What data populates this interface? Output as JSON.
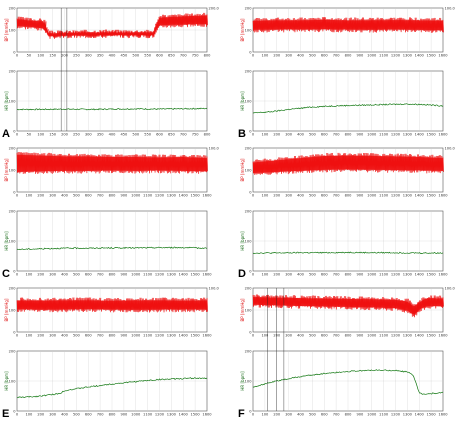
{
  "colors": {
    "bp": "#ee1111",
    "hr": "#117711",
    "grid": "#cccccc",
    "frame": "#555555",
    "event": "#222222"
  },
  "chart_data": [
    {
      "type": "line",
      "panel_label": "A",
      "bp": {
        "ylabel": "BP [mmHg]",
        "ylim": [
          0,
          200
        ],
        "yticks": [
          0,
          100,
          200
        ],
        "rticks": [
          "",
          "",
          "200.0"
        ],
        "xticks": [
          "0",
          "50",
          "100",
          "150",
          "200",
          "250",
          "300",
          "350",
          "400",
          "450",
          "500",
          "550",
          "600",
          "650",
          "700",
          "750",
          "800"
        ],
        "x": [
          0,
          60,
          115,
          130,
          200,
          300,
          400,
          500,
          575,
          590,
          600,
          650,
          700,
          745,
          800
        ],
        "upper": [
          155,
          148,
          145,
          90,
          92,
          95,
          95,
          95,
          95,
          148,
          162,
          165,
          168,
          170,
          172
        ],
        "lower": [
          112,
          108,
          100,
          65,
          68,
          70,
          70,
          70,
          70,
          100,
          115,
          118,
          118,
          120,
          120
        ]
      },
      "hr": {
        "ylabel": "HR [bpm]",
        "ylim": [
          0,
          200
        ],
        "yticks": [
          0,
          100,
          200
        ],
        "xticks": [
          "0",
          "50",
          "100",
          "150",
          "200",
          "250",
          "300",
          "350",
          "400",
          "450",
          "500",
          "550",
          "600",
          "650",
          "700",
          "750",
          "800"
        ],
        "x": [
          0,
          100,
          200,
          300,
          400,
          500,
          600,
          700,
          800
        ],
        "y": [
          72,
          72,
          73,
          72,
          73,
          74,
          73,
          74,
          75
        ]
      },
      "events": [
        186,
        210
      ]
    },
    {
      "type": "line",
      "panel_label": "B",
      "bp": {
        "ylabel": "BP [mmHg]",
        "ylim": [
          0,
          200
        ],
        "yticks": [
          0,
          100,
          200
        ],
        "rticks": [
          "",
          "",
          "100.0"
        ],
        "xticks": [
          "0",
          "100",
          "200",
          "300",
          "400",
          "500",
          "600",
          "700",
          "800",
          "900",
          "1000",
          "1100",
          "1200",
          "1300",
          "1400",
          "1500",
          "1600"
        ],
        "x": [
          0,
          200,
          400,
          600,
          800,
          1000,
          1200,
          1400,
          1600
        ],
        "upper": [
          148,
          150,
          150,
          152,
          150,
          150,
          151,
          150,
          148
        ],
        "lower": [
          95,
          96,
          96,
          97,
          96,
          95,
          96,
          95,
          92
        ]
      },
      "hr": {
        "ylabel": "HR [bpm]",
        "ylim": [
          0,
          200
        ],
        "yticks": [
          0,
          100,
          200
        ],
        "xticks": [
          "0",
          "100",
          "200",
          "300",
          "400",
          "500",
          "600",
          "700",
          "800",
          "900",
          "1000",
          "1100",
          "1200",
          "1300",
          "1400",
          "1500",
          "1600"
        ],
        "x": [
          0,
          150,
          300,
          500,
          700,
          900,
          1100,
          1300,
          1450,
          1550,
          1600
        ],
        "y": [
          60,
          64,
          72,
          80,
          84,
          86,
          88,
          90,
          88,
          85,
          84
        ]
      },
      "events": []
    },
    {
      "type": "line",
      "panel_label": "C",
      "bp": {
        "ylabel": "BP [mmHg]",
        "ylim": [
          0,
          200
        ],
        "yticks": [
          0,
          100,
          200
        ],
        "rticks": [
          "",
          "",
          "100.0"
        ],
        "xticks": [
          "0",
          "100",
          "200",
          "300",
          "400",
          "500",
          "600",
          "700",
          "800",
          "900",
          "1000",
          "1100",
          "1200",
          "1300",
          "1400",
          "1500",
          "1600"
        ],
        "x": [
          0,
          200,
          400,
          600,
          800,
          1000,
          1200,
          1400,
          1600
        ],
        "upper": [
          175,
          172,
          168,
          168,
          165,
          165,
          163,
          165,
          160
        ],
        "lower": [
          85,
          88,
          90,
          90,
          92,
          90,
          92,
          90,
          88
        ]
      },
      "hr": {
        "ylabel": "HR [bpm]",
        "ylim": [
          0,
          200
        ],
        "yticks": [
          0,
          100,
          200
        ],
        "xticks": [
          "0",
          "100",
          "200",
          "300",
          "400",
          "500",
          "600",
          "700",
          "800",
          "900",
          "1000",
          "1100",
          "1200",
          "1300",
          "1400",
          "1500",
          "1600"
        ],
        "x": [
          0,
          200,
          400,
          600,
          800,
          1000,
          1200,
          1400,
          1600
        ],
        "y": [
          72,
          74,
          76,
          76,
          77,
          77,
          78,
          78,
          76
        ]
      },
      "events": []
    },
    {
      "type": "line",
      "panel_label": "D",
      "bp": {
        "ylabel": "BP [mmHg]",
        "ylim": [
          0,
          200
        ],
        "yticks": [
          0,
          100,
          200
        ],
        "rticks": [
          "",
          "",
          "100.0"
        ],
        "xticks": [
          "0",
          "100",
          "200",
          "300",
          "400",
          "500",
          "600",
          "700",
          "800",
          "900",
          "1000",
          "1100",
          "1200",
          "1300",
          "1400",
          "1500",
          "1600"
        ],
        "x": [
          0,
          200,
          400,
          600,
          800,
          1000,
          1200,
          1400,
          1600
        ],
        "upper": [
          140,
          150,
          160,
          170,
          172,
          170,
          168,
          165,
          160
        ],
        "lower": [
          80,
          85,
          90,
          95,
          96,
          95,
          94,
          92,
          90
        ]
      },
      "hr": {
        "ylabel": "HR [bpm]",
        "ylim": [
          0,
          200
        ],
        "yticks": [
          0,
          100,
          200
        ],
        "xticks": [
          "0",
          "100",
          "200",
          "300",
          "400",
          "500",
          "600",
          "700",
          "800",
          "900",
          "1000",
          "1100",
          "1200",
          "1300",
          "1400",
          "1500",
          "1600"
        ],
        "x": [
          0,
          200,
          400,
          600,
          800,
          1000,
          1200,
          1400,
          1600
        ],
        "y": [
          60,
          60,
          61,
          61,
          62,
          61,
          61,
          60,
          60
        ]
      },
      "events": []
    },
    {
      "type": "line",
      "panel_label": "E",
      "bp": {
        "ylabel": "BP [mmHg]",
        "ylim": [
          0,
          200
        ],
        "yticks": [
          0,
          100,
          200
        ],
        "rticks": [
          "",
          "",
          "100.0"
        ],
        "xticks": [
          "0",
          "100",
          "200",
          "300",
          "400",
          "500",
          "600",
          "700",
          "800",
          "900",
          "1000",
          "1100",
          "1200",
          "1300",
          "1400",
          "1500",
          "1600"
        ],
        "x": [
          0,
          200,
          400,
          600,
          800,
          1000,
          1200,
          1400,
          1600
        ],
        "upper": [
          150,
          148,
          150,
          150,
          148,
          150,
          150,
          148,
          150
        ],
        "lower": [
          98,
          95,
          96,
          98,
          96,
          95,
          96,
          97,
          96
        ]
      },
      "hr": {
        "ylabel": "HR [bpm]",
        "ylim": [
          0,
          200
        ],
        "yticks": [
          0,
          100,
          200
        ],
        "xticks": [
          "0",
          "100",
          "200",
          "300",
          "400",
          "500",
          "600",
          "700",
          "800",
          "900",
          "1000",
          "1100",
          "1200",
          "1300",
          "1400",
          "1500",
          "1600"
        ],
        "x": [
          0,
          150,
          300,
          360,
          400,
          600,
          800,
          1000,
          1200,
          1400,
          1500,
          1600
        ],
        "y": [
          45,
          48,
          55,
          58,
          68,
          80,
          90,
          98,
          105,
          108,
          110,
          108
        ]
      },
      "events": []
    },
    {
      "type": "line",
      "panel_label": "F",
      "bp": {
        "ylabel": "BP [mmHg]",
        "ylim": [
          0,
          200
        ],
        "yticks": [
          0,
          100,
          200
        ],
        "rticks": [
          "",
          "",
          "100.0"
        ],
        "xticks": [
          "0",
          "100",
          "200",
          "300",
          "400",
          "500",
          "600",
          "700",
          "800",
          "900",
          "1000",
          "1100",
          "1200",
          "1300",
          "1400",
          "1500",
          "1600"
        ],
        "x": [
          0,
          200,
          400,
          600,
          800,
          1000,
          1200,
          1300,
          1350,
          1400,
          1450,
          1500,
          1600
        ],
        "upper": [
          165,
          162,
          160,
          158,
          156,
          155,
          152,
          145,
          120,
          140,
          158,
          160,
          158
        ],
        "lower": [
          118,
          115,
          112,
          110,
          108,
          106,
          102,
          92,
          70,
          95,
          110,
          112,
          110
        ]
      },
      "hr": {
        "ylabel": "HR [bpm]",
        "ylim": [
          0,
          200
        ],
        "yticks": [
          0,
          100,
          200
        ],
        "xticks": [
          "0",
          "100",
          "200",
          "300",
          "400",
          "500",
          "600",
          "700",
          "800",
          "900",
          "1000",
          "1100",
          "1200",
          "1300",
          "1400",
          "1500",
          "1600"
        ],
        "x": [
          0,
          200,
          400,
          600,
          800,
          1000,
          1200,
          1300,
          1350,
          1400,
          1450,
          1500,
          1600
        ],
        "y": [
          80,
          100,
          115,
          125,
          132,
          136,
          135,
          130,
          120,
          60,
          55,
          58,
          62
        ]
      },
      "events": [
        120,
        200,
        260
      ]
    }
  ]
}
